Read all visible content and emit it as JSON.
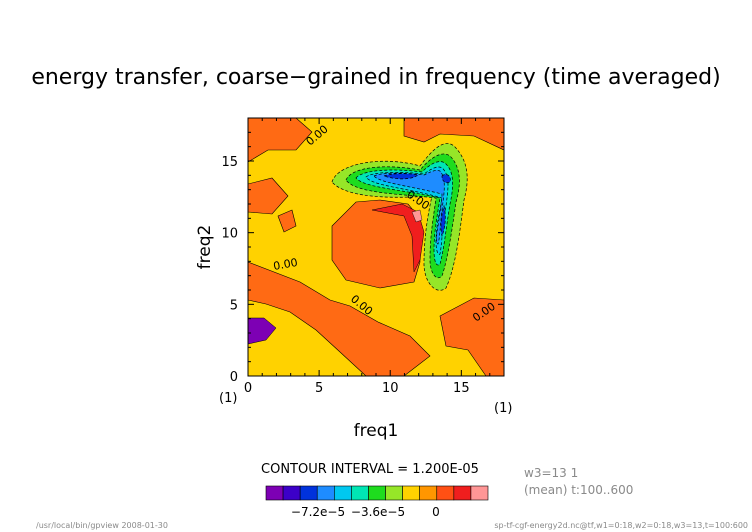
{
  "chart_data": {
    "type": "contour",
    "title": "energy transfer, coarse−grained in frequency (time averaged)",
    "xlabel": "freq1",
    "ylabel": "freq2",
    "x_unit_label": "(1)",
    "y_unit_label": "(1)",
    "xlim": [
      0,
      18
    ],
    "ylim": [
      0,
      18
    ],
    "x_ticks": [
      "0",
      "5",
      "10",
      "15"
    ],
    "y_ticks": [
      "0",
      "5",
      "10",
      "15"
    ],
    "contour_interval_text": "CONTOUR INTERVAL = 1.200E-05",
    "contour_labels": [
      "0.00",
      "0.00",
      "0.00",
      "0.00",
      "0.00"
    ],
    "colorbar": {
      "colors": [
        "#7d00b4",
        "#3c00c8",
        "#0032dc",
        "#1e8cff",
        "#00c8f0",
        "#00e6b4",
        "#1edc1e",
        "#96e628",
        "#ffd200",
        "#ff9600",
        "#ff5014",
        "#f01e1e",
        "#ff9696"
      ],
      "tick_labels": [
        "−7.2e−5",
        "−3.6e−5",
        "0"
      ]
    },
    "meta_right": [
      "w3=13 1",
      "(mean) t:100..600"
    ],
    "footer_left": "/usr/local/bin/gpview 2008-01-30",
    "footer_right": "sp-tf-cgf-energy2d.nc@tf,w1=0:18,w2=0:18,w3=13,t=100:600"
  }
}
